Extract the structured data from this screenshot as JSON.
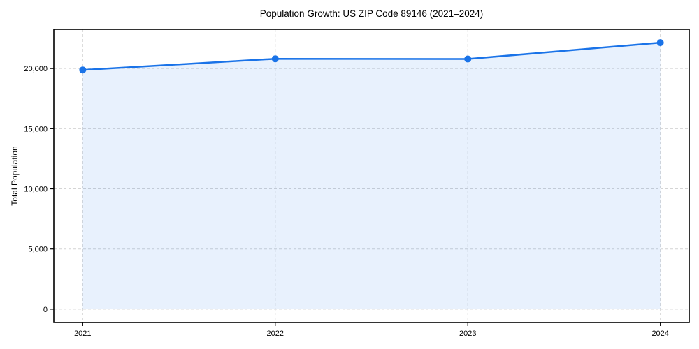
{
  "title": "Population Growth: US ZIP Code 89146 (2021–2024)",
  "chart_data": {
    "type": "line",
    "title": "Population Growth: US ZIP Code 89146 (2021–2024)",
    "xlabel": "",
    "ylabel": "Total Population",
    "x": [
      2021,
      2022,
      2023,
      2024
    ],
    "series": [
      {
        "name": "Total Population",
        "values": [
          19880,
          20810,
          20790,
          22150
        ]
      }
    ],
    "xtick_labels": [
      "2021",
      "2022",
      "2023",
      "2024"
    ],
    "yticks": [
      0,
      5000,
      10000,
      15000,
      20000
    ],
    "ytick_labels": [
      "0",
      "5,000",
      "10,000",
      "15,000",
      "20,000"
    ],
    "xlim": [
      2020.85,
      2024.15
    ],
    "ylim": [
      -1108,
      23258
    ],
    "grid": true,
    "grid_style": "dashed",
    "legend": false,
    "area_fill": true,
    "marker": "circle",
    "colors": {
      "line": "#1a73e8",
      "marker": "#1a73e8",
      "fill": "rgba(26,115,232,0.10)",
      "grid": "#d4d4d4",
      "spine": "#000000",
      "background": "#ffffff"
    }
  }
}
